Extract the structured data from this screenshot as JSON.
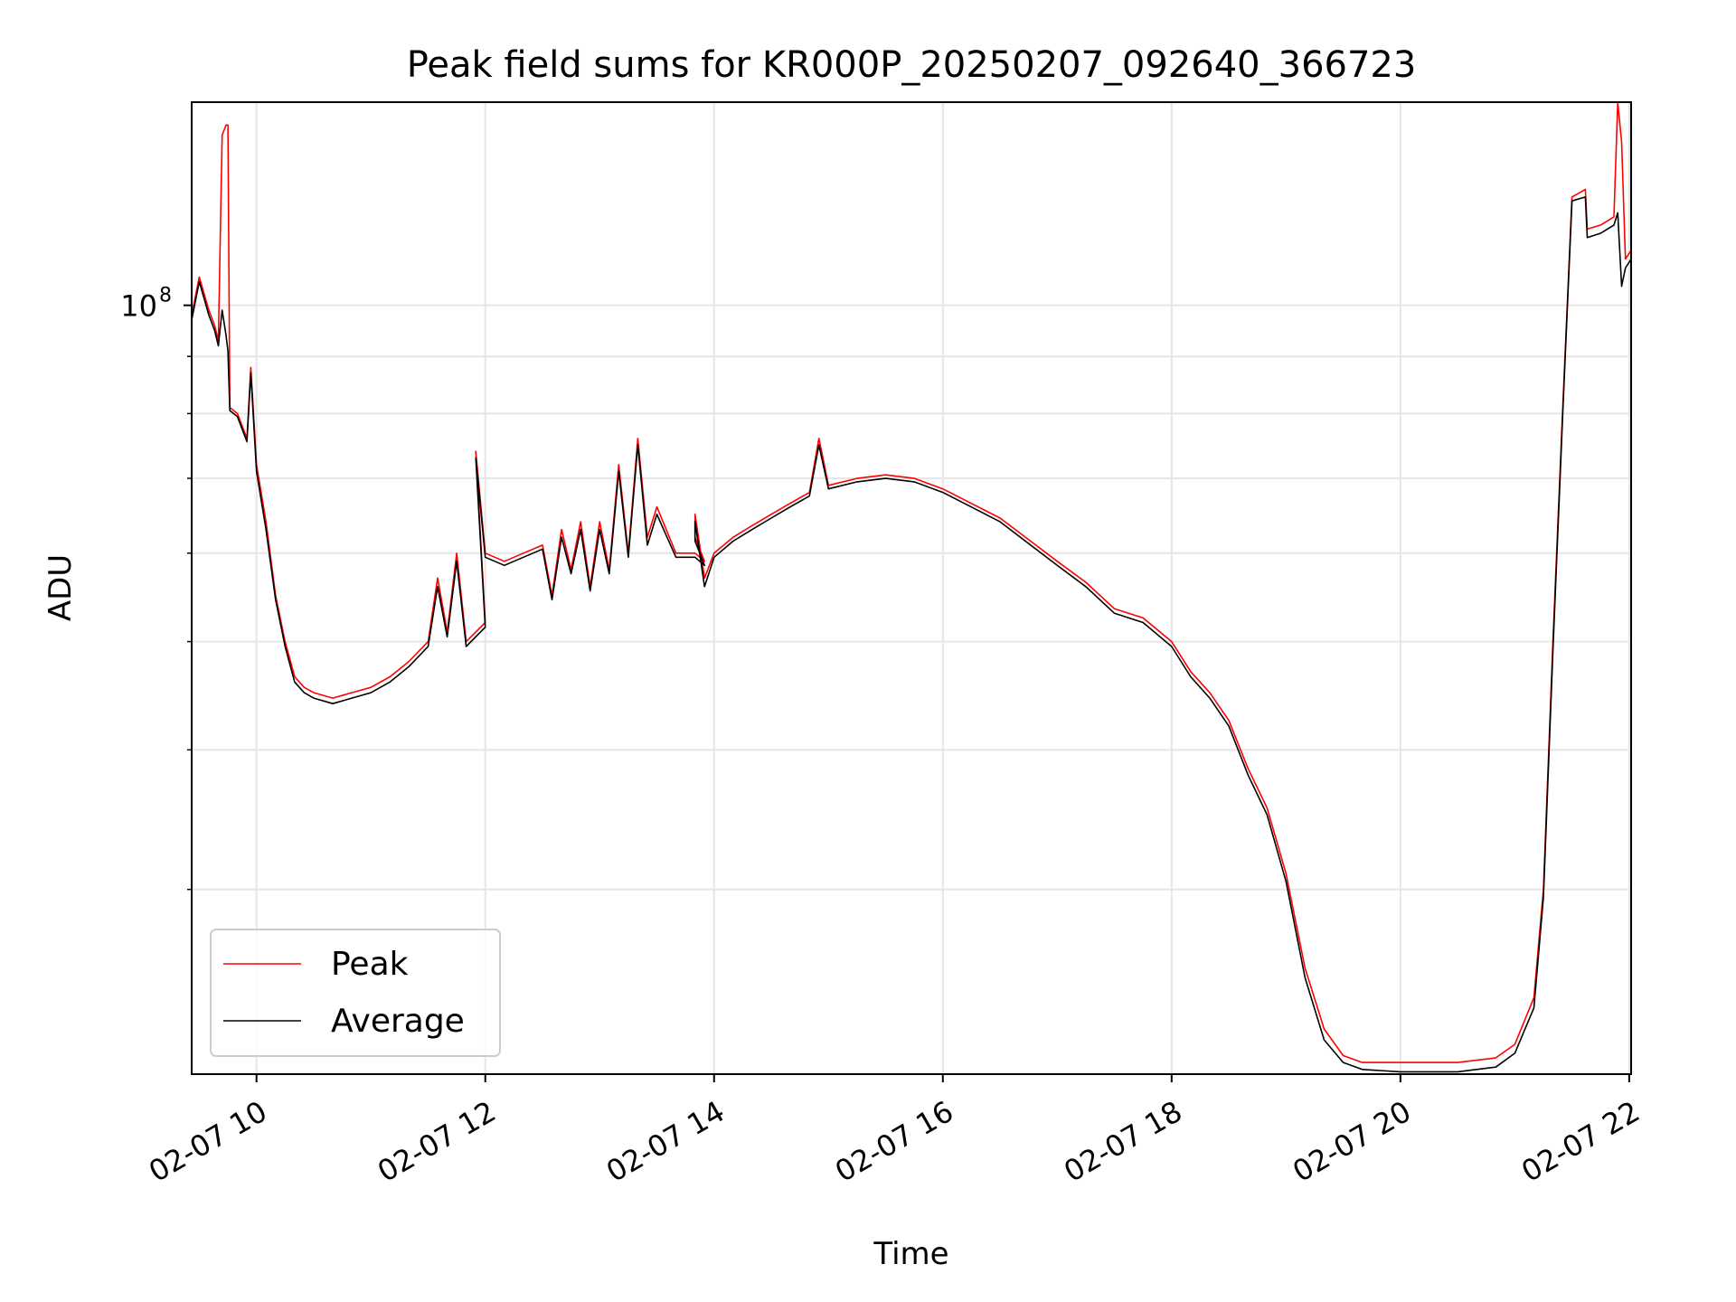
{
  "chart_data": {
    "type": "line",
    "title": "Peak field sums for KR000P_20250207_092640_366723",
    "xlabel": "Time",
    "ylabel": "ADU",
    "yscale": "log",
    "ylim": [
      20500000,
      152000000
    ],
    "xlim": [
      "2025-02-07 09:26",
      "2025-02-07 22:01"
    ],
    "grid": true,
    "legend_position": "lower-left",
    "x_ticks": [
      {
        "x": "2025-02-07 10:00",
        "label": "02-07 10"
      },
      {
        "x": "2025-02-07 12:00",
        "label": "02-07 12"
      },
      {
        "x": "2025-02-07 14:00",
        "label": "02-07 14"
      },
      {
        "x": "2025-02-07 16:00",
        "label": "02-07 16"
      },
      {
        "x": "2025-02-07 18:00",
        "label": "02-07 18"
      },
      {
        "x": "2025-02-07 20:00",
        "label": "02-07 20"
      },
      {
        "x": "2025-02-07 22:00",
        "label": "02-07 22"
      }
    ],
    "y_major_ticks": [
      {
        "value": 100000000,
        "label_base": "10",
        "label_exp": "8"
      }
    ],
    "y_minor_ticks": [
      30000000,
      40000000,
      50000000,
      60000000,
      70000000,
      80000000,
      90000000,
      200000000
    ],
    "series": [
      {
        "name": "Peak",
        "color": "#ff0000",
        "points": [
          [
            "2025-02-07 09:26",
            98000000
          ],
          [
            "2025-02-07 09:30",
            106000000
          ],
          [
            "2025-02-07 09:35",
            99000000
          ],
          [
            "2025-02-07 09:38",
            96000000
          ],
          [
            "2025-02-07 09:40",
            93000000
          ],
          [
            "2025-02-07 09:42",
            142000000
          ],
          [
            "2025-02-07 09:44",
            145000000
          ],
          [
            "2025-02-07 09:45",
            145000000
          ],
          [
            "2025-02-07 09:46",
            81000000
          ],
          [
            "2025-02-07 09:50",
            80000000
          ],
          [
            "2025-02-07 09:55",
            76000000
          ],
          [
            "2025-02-07 09:57",
            88000000
          ],
          [
            "2025-02-07 10:00",
            72000000
          ],
          [
            "2025-02-07 10:05",
            64000000
          ],
          [
            "2025-02-07 10:10",
            55000000
          ],
          [
            "2025-02-07 10:15",
            50000000
          ],
          [
            "2025-02-07 10:20",
            46500000
          ],
          [
            "2025-02-07 10:25",
            45500000
          ],
          [
            "2025-02-07 10:30",
            45000000
          ],
          [
            "2025-02-07 10:40",
            44500000
          ],
          [
            "2025-02-07 10:50",
            45000000
          ],
          [
            "2025-02-07 11:00",
            45500000
          ],
          [
            "2025-02-07 11:10",
            46500000
          ],
          [
            "2025-02-07 11:20",
            48000000
          ],
          [
            "2025-02-07 11:30",
            50000000
          ],
          [
            "2025-02-07 11:35",
            57000000
          ],
          [
            "2025-02-07 11:40",
            51000000
          ],
          [
            "2025-02-07 11:45",
            60000000
          ],
          [
            "2025-02-07 11:50",
            50000000
          ],
          [
            "2025-02-07 12:00",
            52000000
          ],
          [
            "2025-02-07 11:55",
            74000000
          ],
          [
            "2025-02-07 12:00",
            60000000
          ],
          [
            "2025-02-07 12:10",
            59000000
          ],
          [
            "2025-02-07 12:20",
            60000000
          ],
          [
            "2025-02-07 12:30",
            61000000
          ],
          [
            "2025-02-07 12:35",
            55000000
          ],
          [
            "2025-02-07 12:40",
            63000000
          ],
          [
            "2025-02-07 12:45",
            58000000
          ],
          [
            "2025-02-07 12:50",
            64000000
          ],
          [
            "2025-02-07 12:55",
            56000000
          ],
          [
            "2025-02-07 13:00",
            64000000
          ],
          [
            "2025-02-07 13:05",
            58000000
          ],
          [
            "2025-02-07 13:10",
            72000000
          ],
          [
            "2025-02-07 13:15",
            60000000
          ],
          [
            "2025-02-07 13:20",
            76000000
          ],
          [
            "2025-02-07 13:25",
            62000000
          ],
          [
            "2025-02-07 13:30",
            66000000
          ],
          [
            "2025-02-07 13:40",
            60000000
          ],
          [
            "2025-02-07 13:50",
            60000000
          ],
          [
            "2025-02-07 13:55",
            59000000
          ],
          [
            "2025-02-07 13:50",
            62000000
          ],
          [
            "2025-02-07 13:50",
            65000000
          ],
          [
            "2025-02-07 13:55",
            57000000
          ],
          [
            "2025-02-07 14:00",
            60000000
          ],
          [
            "2025-02-07 14:10",
            62000000
          ],
          [
            "2025-02-07 14:20",
            63500000
          ],
          [
            "2025-02-07 14:30",
            65000000
          ],
          [
            "2025-02-07 14:40",
            66500000
          ],
          [
            "2025-02-07 14:50",
            68000000
          ],
          [
            "2025-02-07 14:55",
            76000000
          ],
          [
            "2025-02-07 15:00",
            69000000
          ],
          [
            "2025-02-07 15:15",
            70000000
          ],
          [
            "2025-02-07 15:30",
            70500000
          ],
          [
            "2025-02-07 15:45",
            70000000
          ],
          [
            "2025-02-07 16:00",
            68500000
          ],
          [
            "2025-02-07 16:30",
            64500000
          ],
          [
            "2025-02-07 17:00",
            59000000
          ],
          [
            "2025-02-07 17:15",
            56500000
          ],
          [
            "2025-02-07 17:30",
            53500000
          ],
          [
            "2025-02-07 17:45",
            52500000
          ],
          [
            "2025-02-07 18:00",
            50000000
          ],
          [
            "2025-02-07 18:10",
            47000000
          ],
          [
            "2025-02-07 18:20",
            45000000
          ],
          [
            "2025-02-07 18:30",
            42500000
          ],
          [
            "2025-02-07 18:40",
            38500000
          ],
          [
            "2025-02-07 18:50",
            35500000
          ],
          [
            "2025-02-07 19:00",
            31000000
          ],
          [
            "2025-02-07 19:10",
            25500000
          ],
          [
            "2025-02-07 19:20",
            22500000
          ],
          [
            "2025-02-07 19:30",
            21300000
          ],
          [
            "2025-02-07 19:40",
            21000000
          ],
          [
            "2025-02-07 20:00",
            21000000
          ],
          [
            "2025-02-07 20:30",
            21000000
          ],
          [
            "2025-02-07 20:50",
            21200000
          ],
          [
            "2025-02-07 21:00",
            21800000
          ],
          [
            "2025-02-07 21:10",
            24000000
          ],
          [
            "2025-02-07 21:15",
            30000000
          ],
          [
            "2025-02-07 21:20",
            50000000
          ],
          [
            "2025-02-07 21:25",
            80000000
          ],
          [
            "2025-02-07 21:30",
            125000000
          ],
          [
            "2025-02-07 21:37",
            127000000
          ],
          [
            "2025-02-07 21:38",
            117000000
          ],
          [
            "2025-02-07 21:45",
            118000000
          ],
          [
            "2025-02-07 21:52",
            120000000
          ],
          [
            "2025-02-07 21:54",
            152000000
          ],
          [
            "2025-02-07 21:56",
            140000000
          ],
          [
            "2025-02-07 21:58",
            110000000
          ],
          [
            "2025-02-07 22:01",
            112000000
          ]
        ]
      },
      {
        "name": "Average",
        "color": "#000000",
        "points": [
          [
            "2025-02-07 09:26",
            97000000
          ],
          [
            "2025-02-07 09:30",
            105000000
          ],
          [
            "2025-02-07 09:35",
            98000000
          ],
          [
            "2025-02-07 09:38",
            95000000
          ],
          [
            "2025-02-07 09:40",
            92000000
          ],
          [
            "2025-02-07 09:42",
            99000000
          ],
          [
            "2025-02-07 09:44",
            94000000
          ],
          [
            "2025-02-07 09:45",
            91000000
          ],
          [
            "2025-02-07 09:46",
            80500000
          ],
          [
            "2025-02-07 09:50",
            79500000
          ],
          [
            "2025-02-07 09:55",
            75500000
          ],
          [
            "2025-02-07 09:57",
            87000000
          ],
          [
            "2025-02-07 10:00",
            71000000
          ],
          [
            "2025-02-07 10:05",
            63000000
          ],
          [
            "2025-02-07 10:10",
            54500000
          ],
          [
            "2025-02-07 10:15",
            49500000
          ],
          [
            "2025-02-07 10:20",
            46000000
          ],
          [
            "2025-02-07 10:25",
            45000000
          ],
          [
            "2025-02-07 10:30",
            44500000
          ],
          [
            "2025-02-07 10:40",
            44000000
          ],
          [
            "2025-02-07 10:50",
            44500000
          ],
          [
            "2025-02-07 11:00",
            45000000
          ],
          [
            "2025-02-07 11:10",
            46000000
          ],
          [
            "2025-02-07 11:20",
            47500000
          ],
          [
            "2025-02-07 11:30",
            49500000
          ],
          [
            "2025-02-07 11:35",
            56000000
          ],
          [
            "2025-02-07 11:40",
            50500000
          ],
          [
            "2025-02-07 11:45",
            59000000
          ],
          [
            "2025-02-07 11:50",
            49500000
          ],
          [
            "2025-02-07 12:00",
            51500000
          ],
          [
            "2025-02-07 11:55",
            73000000
          ],
          [
            "2025-02-07 12:00",
            59500000
          ],
          [
            "2025-02-07 12:10",
            58500000
          ],
          [
            "2025-02-07 12:20",
            59500000
          ],
          [
            "2025-02-07 12:30",
            60500000
          ],
          [
            "2025-02-07 12:35",
            54500000
          ],
          [
            "2025-02-07 12:40",
            62000000
          ],
          [
            "2025-02-07 12:45",
            57500000
          ],
          [
            "2025-02-07 12:50",
            63000000
          ],
          [
            "2025-02-07 12:55",
            55500000
          ],
          [
            "2025-02-07 13:00",
            63000000
          ],
          [
            "2025-02-07 13:05",
            57500000
          ],
          [
            "2025-02-07 13:10",
            71000000
          ],
          [
            "2025-02-07 13:15",
            59500000
          ],
          [
            "2025-02-07 13:20",
            75000000
          ],
          [
            "2025-02-07 13:25",
            61000000
          ],
          [
            "2025-02-07 13:30",
            65000000
          ],
          [
            "2025-02-07 13:40",
            59500000
          ],
          [
            "2025-02-07 13:50",
            59500000
          ],
          [
            "2025-02-07 13:55",
            58500000
          ],
          [
            "2025-02-07 13:50",
            61500000
          ],
          [
            "2025-02-07 13:50",
            64000000
          ],
          [
            "2025-02-07 13:55",
            56000000
          ],
          [
            "2025-02-07 14:00",
            59500000
          ],
          [
            "2025-02-07 14:10",
            61500000
          ],
          [
            "2025-02-07 14:20",
            63000000
          ],
          [
            "2025-02-07 14:30",
            64500000
          ],
          [
            "2025-02-07 14:40",
            66000000
          ],
          [
            "2025-02-07 14:50",
            67500000
          ],
          [
            "2025-02-07 14:55",
            75000000
          ],
          [
            "2025-02-07 15:00",
            68500000
          ],
          [
            "2025-02-07 15:15",
            69500000
          ],
          [
            "2025-02-07 15:30",
            70000000
          ],
          [
            "2025-02-07 15:45",
            69500000
          ],
          [
            "2025-02-07 16:00",
            68000000
          ],
          [
            "2025-02-07 16:30",
            64000000
          ],
          [
            "2025-02-07 17:00",
            58500000
          ],
          [
            "2025-02-07 17:15",
            56000000
          ],
          [
            "2025-02-07 17:30",
            53000000
          ],
          [
            "2025-02-07 17:45",
            52000000
          ],
          [
            "2025-02-07 18:00",
            49500000
          ],
          [
            "2025-02-07 18:10",
            46500000
          ],
          [
            "2025-02-07 18:20",
            44500000
          ],
          [
            "2025-02-07 18:30",
            42000000
          ],
          [
            "2025-02-07 18:40",
            38000000
          ],
          [
            "2025-02-07 18:50",
            35000000
          ],
          [
            "2025-02-07 19:00",
            30500000
          ],
          [
            "2025-02-07 19:10",
            25000000
          ],
          [
            "2025-02-07 19:20",
            22000000
          ],
          [
            "2025-02-07 19:30",
            21000000
          ],
          [
            "2025-02-07 19:40",
            20700000
          ],
          [
            "2025-02-07 20:00",
            20600000
          ],
          [
            "2025-02-07 20:30",
            20600000
          ],
          [
            "2025-02-07 20:50",
            20800000
          ],
          [
            "2025-02-07 21:00",
            21400000
          ],
          [
            "2025-02-07 21:10",
            23500000
          ],
          [
            "2025-02-07 21:15",
            29500000
          ],
          [
            "2025-02-07 21:20",
            49000000
          ],
          [
            "2025-02-07 21:25",
            79000000
          ],
          [
            "2025-02-07 21:30",
            124000000
          ],
          [
            "2025-02-07 21:37",
            125000000
          ],
          [
            "2025-02-07 21:38",
            115000000
          ],
          [
            "2025-02-07 21:45",
            116000000
          ],
          [
            "2025-02-07 21:52",
            118000000
          ],
          [
            "2025-02-07 21:54",
            121000000
          ],
          [
            "2025-02-07 21:56",
            104000000
          ],
          [
            "2025-02-07 21:58",
            108000000
          ],
          [
            "2025-02-07 22:01",
            110000000
          ]
        ]
      }
    ]
  }
}
